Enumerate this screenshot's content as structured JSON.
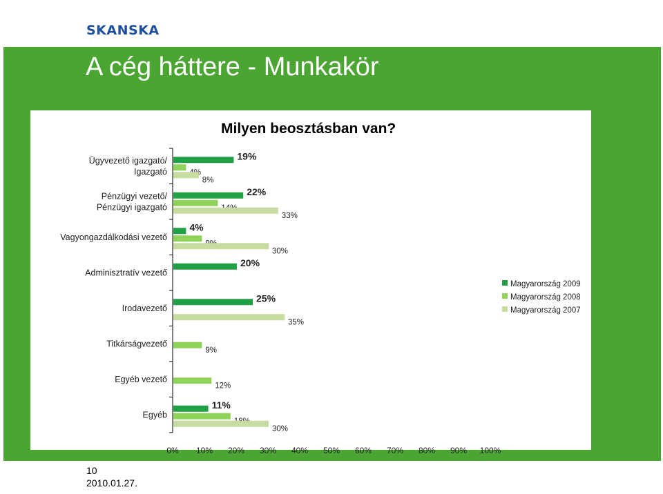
{
  "header": {
    "logo": "SKANSKA",
    "title": "A cég háttere - Munkakör"
  },
  "footer": {
    "page": "10",
    "date": "2010.01.27."
  },
  "chart_data": {
    "type": "bar",
    "orientation": "horizontal",
    "title": "Milyen beosztásban van?",
    "categories": [
      [
        "Ügyvezető igazgató/",
        "Igazgató"
      ],
      [
        "Pénzügyi vezető/",
        "Pénzügyi igazgató"
      ],
      [
        "Vagyongazdálkodási vezető"
      ],
      [
        "Adminisztratív vezető"
      ],
      [
        "Irodavezető"
      ],
      [
        "Titkárságvezető"
      ],
      [
        "Egyéb vezető"
      ],
      [
        "Egyéb"
      ]
    ],
    "series": [
      {
        "name": "Magyarország 2009",
        "color": "#22a045",
        "values": [
          19,
          22,
          4,
          20,
          25,
          null,
          null,
          11
        ],
        "labels": [
          "19%",
          "22%",
          "4%",
          "20%",
          "25%",
          "",
          "",
          "11%"
        ]
      },
      {
        "name": "Magyarország 2008",
        "color": "#8fd35a",
        "values": [
          4,
          14,
          9,
          null,
          null,
          9,
          12,
          18
        ],
        "labels": [
          "4%",
          "14%",
          "9%",
          "",
          "",
          "9%",
          "12%",
          "18%"
        ]
      },
      {
        "name": "Magyarország 2007",
        "color": "#c7dca0",
        "values": [
          8,
          33,
          30,
          null,
          35,
          null,
          null,
          30
        ],
        "labels": [
          "8%",
          "33%",
          "30%",
          "",
          "35%",
          "",
          "",
          "30%"
        ]
      }
    ],
    "xlim": [
      0,
      100
    ],
    "xticks": [
      "0%",
      "10%",
      "20%",
      "30%",
      "40%",
      "50%",
      "60%",
      "70%",
      "80%",
      "90%",
      "100%"
    ],
    "legend": "right",
    "grid": false
  }
}
